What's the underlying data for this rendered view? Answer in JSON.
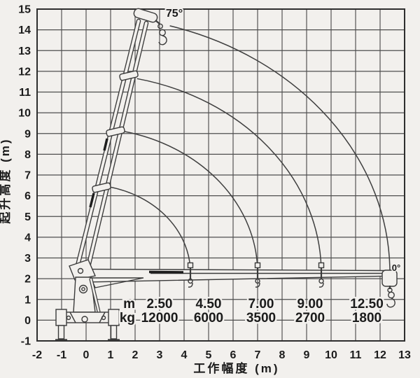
{
  "chart": {
    "y_axis_title": "起升高度 (m)",
    "x_axis_title": "工作幅度 (m)",
    "y_ticks": [
      "15",
      "14",
      "13",
      "12",
      "11",
      "10",
      "9",
      "8",
      "7",
      "6",
      "5",
      "4",
      "3",
      "2",
      "1",
      "0",
      "-1"
    ],
    "x_ticks": [
      "-2",
      "-1",
      "0",
      "1",
      "2",
      "3",
      "4",
      "5",
      "6",
      "7",
      "8",
      "9",
      "10",
      "11",
      "12",
      "13"
    ],
    "angle_labels": {
      "max": "75°",
      "min": "0°"
    },
    "load_table": {
      "row1_label": "m",
      "row2_label": "kg",
      "row1": [
        "2.50",
        "4.50",
        "7.00",
        "9.00",
        "12.50"
      ],
      "row2": [
        "12000",
        "6000",
        "3500",
        "2700",
        "1800"
      ]
    }
  },
  "chart_data": {
    "type": "line",
    "title": "",
    "xlabel": "工作幅度 (m)",
    "ylabel": "起升高度 (m)",
    "xlim": [
      -2,
      13
    ],
    "ylim": [
      -1,
      15
    ],
    "grid": true,
    "legend": "none",
    "series": [
      {
        "name": "load_capacity",
        "radius_m": [
          2.5,
          4.5,
          7.0,
          9.0,
          12.5
        ],
        "capacity_kg": [
          12000,
          6000,
          3500,
          2700,
          1800
        ]
      }
    ],
    "boom_angle_range_deg": [
      0,
      75
    ],
    "boom_extension_arc_radii_m": [
      4.26,
      7.0,
      9.6,
      12.4
    ],
    "boom_pivot_xy_m": [
      0,
      2.3
    ]
  }
}
